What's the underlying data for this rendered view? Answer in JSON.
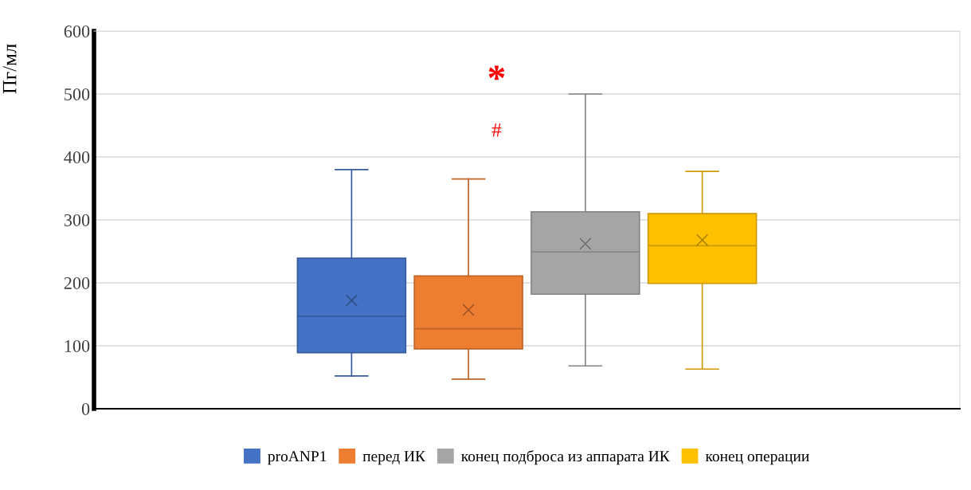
{
  "chart_data": {
    "type": "box",
    "ylabel": "Пг/мл",
    "categories": [
      null
    ],
    "series": [
      {
        "name": "proANP1",
        "color": "#4472c4",
        "boxes": [
          {
            "low": 52,
            "q1": 89,
            "median": 147,
            "q3": 239,
            "high": 380,
            "mean": 172
          }
        ]
      },
      {
        "name": "перед ИК",
        "color": "#ed7d31",
        "boxes": [
          {
            "low": 47,
            "q1": 95,
            "median": 127,
            "q3": 211,
            "high": 365,
            "mean": 157
          }
        ]
      },
      {
        "name": "конец подброса из аппарата ИК",
        "color": "#a5a5a5",
        "boxes": [
          {
            "low": 68,
            "q1": 182,
            "median": 249,
            "q3": 313,
            "high": 500,
            "mean": 262
          }
        ]
      },
      {
        "name": "конец операции",
        "color": "#ffc000",
        "boxes": [
          {
            "low": 63,
            "q1": 199,
            "median": 259,
            "q3": 310,
            "high": 377,
            "mean": 268
          }
        ]
      }
    ],
    "annotations": [
      "*",
      "#"
    ],
    "ylim": [
      0,
      600
    ],
    "yticks": [
      0,
      100,
      200,
      300,
      400,
      500,
      600
    ],
    "grid": "y",
    "legend": "bottom"
  }
}
